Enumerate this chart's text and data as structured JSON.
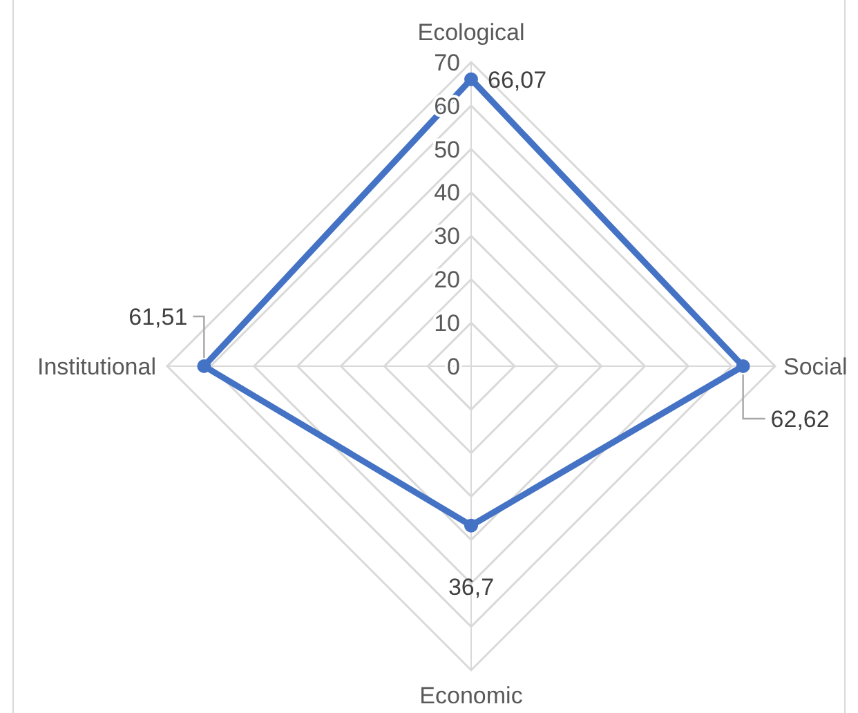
{
  "chart_data": {
    "type": "radar",
    "categories": [
      "Ecological",
      "Social",
      "Economic",
      "Institutional"
    ],
    "series": [
      {
        "color": "#4472c4",
        "values": [
          66.07,
          62.62,
          36.7,
          61.51
        ],
        "value_labels": [
          "66,07",
          "62,62",
          "36,7",
          "61,51"
        ]
      }
    ],
    "ylim": [
      0,
      70
    ],
    "yticks": [
      0,
      10,
      20,
      30,
      40,
      50,
      60,
      70
    ],
    "grid": true,
    "marker": "circle"
  }
}
